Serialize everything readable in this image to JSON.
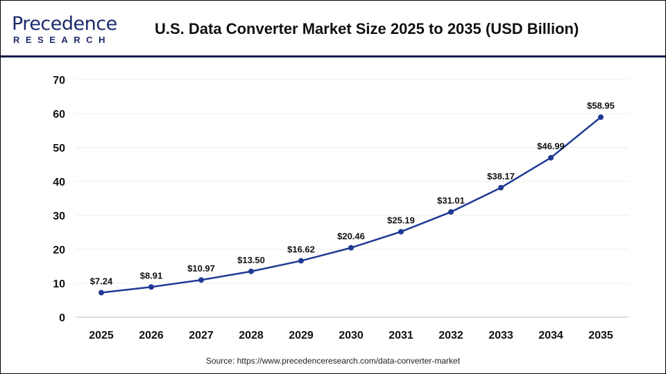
{
  "header": {
    "logo_text": "Precedence",
    "logo_sub": "RESEARCH",
    "title": "U.S. Data Converter Market Size 2025 to 2035 (USD Billion)"
  },
  "source": "Source: https://www.precedenceresearch.com/data-converter-market",
  "chart_data": {
    "type": "line",
    "title": "U.S. Data Converter Market Size 2025 to 2035 (USD Billion)",
    "categories": [
      "2025",
      "2026",
      "2027",
      "2028",
      "2029",
      "2030",
      "2031",
      "2032",
      "2033",
      "2034",
      "2035"
    ],
    "values": [
      7.24,
      8.91,
      10.97,
      13.5,
      16.62,
      20.46,
      25.19,
      31.01,
      38.17,
      46.99,
      58.95
    ],
    "data_labels": [
      "$7.24",
      "$8.91",
      "$10.97",
      "$13.50",
      "$16.62",
      "$20.46",
      "$25.19",
      "$31.01",
      "$38.17",
      "$46.99",
      "$58.95"
    ],
    "ylim": [
      0,
      70
    ],
    "yticks": [
      "0",
      "10",
      "20",
      "30",
      "40",
      "50",
      "60",
      "70"
    ],
    "grid": true,
    "line_color": "#1f3a93"
  }
}
